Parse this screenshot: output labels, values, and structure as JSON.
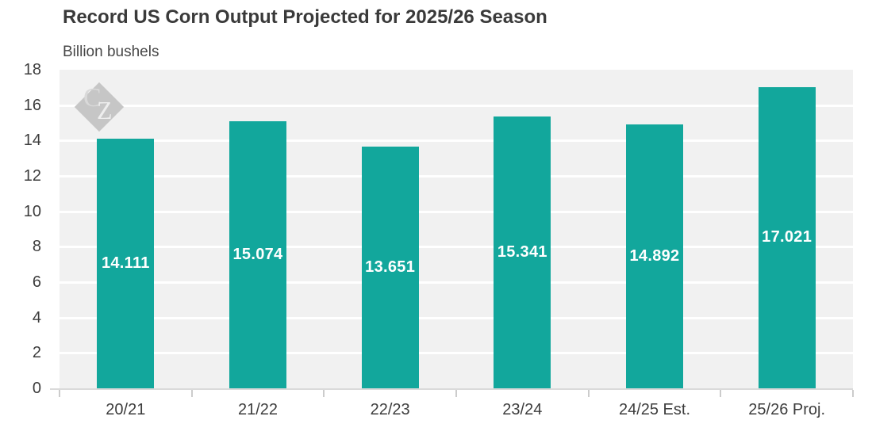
{
  "title": "Record US Corn Output Projected for 2025/26 Season",
  "subtitle": "Billion bushels",
  "watermark": {
    "c": "C",
    "z": "Z"
  },
  "colors": {
    "bar": "#12a79c",
    "plot_background": "#f1f1f1",
    "gridline": "#ffffff",
    "axis_line": "#dadada",
    "title_text": "#3a3a3a",
    "axis_text": "#3d3d3d",
    "value_label_text": "#ffffff",
    "watermark": "#c6c6c6"
  },
  "chart_data": {
    "type": "bar",
    "title": "Record US Corn Output Projected for 2025/26 Season",
    "ylabel": "Billion bushels",
    "categories": [
      "20/21",
      "21/22",
      "22/23",
      "23/24",
      "24/25 Est.",
      "25/26 Proj."
    ],
    "values": [
      14.111,
      15.074,
      13.651,
      15.341,
      14.892,
      17.021
    ],
    "value_labels": [
      "14.111",
      "15.074",
      "13.651",
      "15.341",
      "14.892",
      "17.021"
    ],
    "ylim": [
      0,
      18
    ],
    "yticks": [
      0,
      2,
      4,
      6,
      8,
      10,
      12,
      14,
      16,
      18
    ],
    "grid": true,
    "legend": false,
    "bar_color": "#12a79c"
  }
}
